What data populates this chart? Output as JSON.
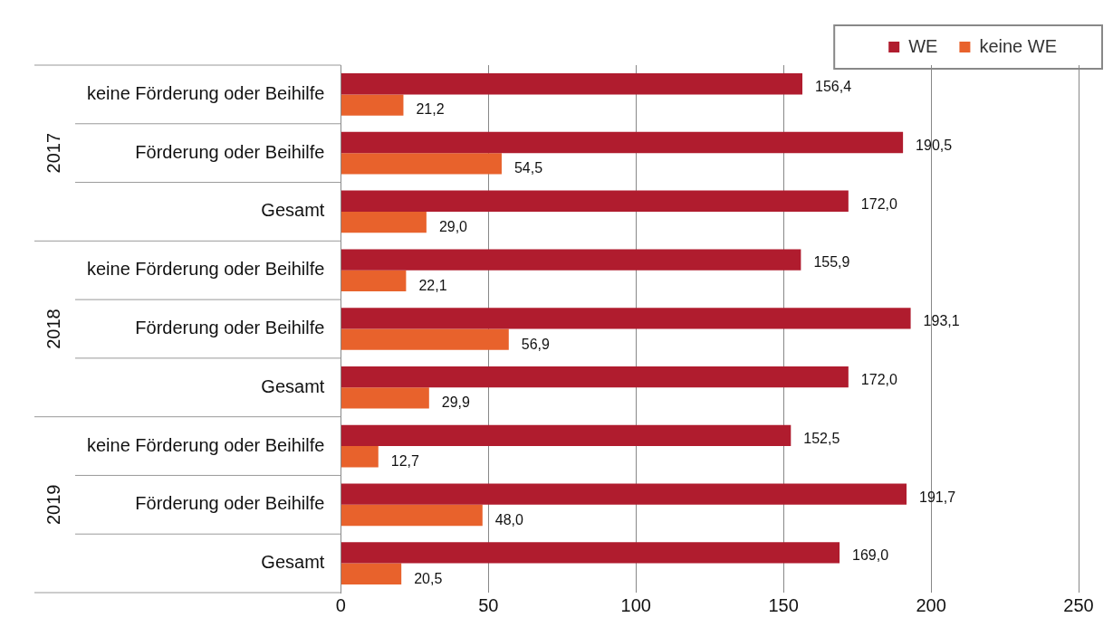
{
  "chart_data": {
    "type": "bar",
    "orientation": "horizontal",
    "categories": [
      "keine Förderung oder Beihilfe",
      "Förderung oder Beihilfe",
      "Gesamt",
      "keine Förderung oder Beihilfe",
      "Förderung oder Beihilfe",
      "Gesamt",
      "keine Förderung oder Beihilfe",
      "Förderung oder Beihilfe",
      "Gesamt"
    ],
    "series": [
      {
        "name": "WE",
        "color": "#b01c2e",
        "values": [
          156.4,
          190.5,
          172.0,
          155.9,
          193.1,
          172.0,
          152.5,
          191.7,
          169.0
        ],
        "value_labels": [
          "156,4",
          "190,5",
          "172,0",
          "155,9",
          "193,1",
          "172,0",
          "152,5",
          "191,7",
          "169,0"
        ]
      },
      {
        "name": "keine WE",
        "color": "#e8622c",
        "values": [
          21.2,
          54.5,
          29.0,
          22.1,
          56.9,
          29.9,
          12.7,
          48.0,
          20.5
        ],
        "value_labels": [
          "21,2",
          "54,5",
          "29,0",
          "22,1",
          "56,9",
          "29,9",
          "12,7",
          "48,0",
          "20,5"
        ]
      }
    ],
    "annotations": [
      "2017",
      "2018",
      "2019"
    ],
    "xlim": [
      0,
      250
    ],
    "xticks": [
      0,
      50,
      100,
      150,
      200,
      250
    ],
    "grid": "x",
    "legend": "top right"
  }
}
